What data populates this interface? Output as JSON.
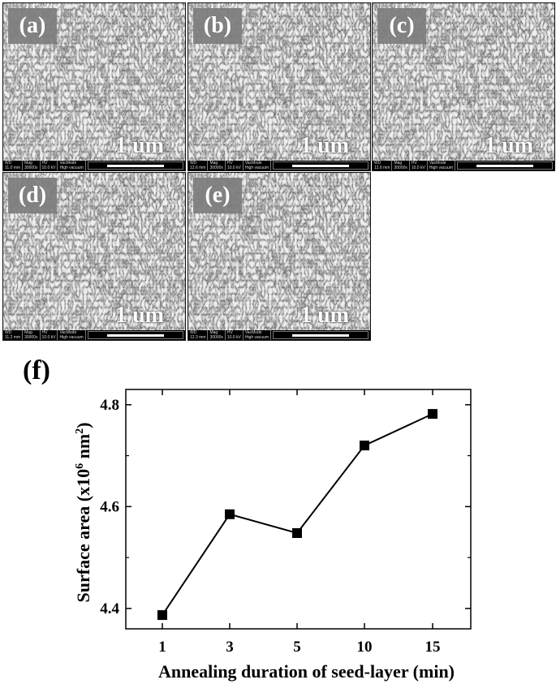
{
  "panels": [
    {
      "label": "(a)",
      "scale": "1 um",
      "wd": "11.0 mm",
      "mag": "30000x",
      "hv": "10.0 kV",
      "vac": "High vacuum"
    },
    {
      "label": "(b)",
      "scale": "1 um",
      "wd": "12.6 mm",
      "mag": "30000x",
      "hv": "10.0 kV",
      "vac": "High vacuum"
    },
    {
      "label": "(c)",
      "scale": "1 um",
      "wd": "12.6 mm",
      "mag": "30000x",
      "hv": "10.0 kV",
      "vac": "High vacuum"
    },
    {
      "label": "(d)",
      "scale": "1 um",
      "wd": "11.2 mm",
      "mag": "30000x",
      "hv": "10.0 kV",
      "vac": "High vacuum"
    },
    {
      "label": "(e)",
      "scale": "1 um",
      "wd": "12.3 mm",
      "mag": "30000x",
      "hv": "10.0 kV",
      "vac": "High vacuum"
    }
  ],
  "info_headers": {
    "wd": "WD",
    "mag": "Mag",
    "hv": "HV",
    "vac": "VacMode"
  },
  "figure_f_label": "(f)",
  "chart_data": {
    "type": "line",
    "categories": [
      "1",
      "3",
      "5",
      "10",
      "15"
    ],
    "values": [
      4.387,
      4.585,
      4.548,
      4.72,
      4.782
    ],
    "xlabel": "Annealing duration of seed-layer (min)",
    "ylabel_main": "Surface area (x10",
    "ylabel_sup1": "6",
    "ylabel_mid": " nm",
    "ylabel_sup2": "2",
    "ylabel_end": ")",
    "ylim": [
      4.36,
      4.83
    ],
    "yticks": [
      "4.4",
      "4.6",
      "4.8"
    ],
    "ytick_values": [
      4.4,
      4.6,
      4.8
    ],
    "marker": "square",
    "grid": false,
    "color": "#000000"
  }
}
